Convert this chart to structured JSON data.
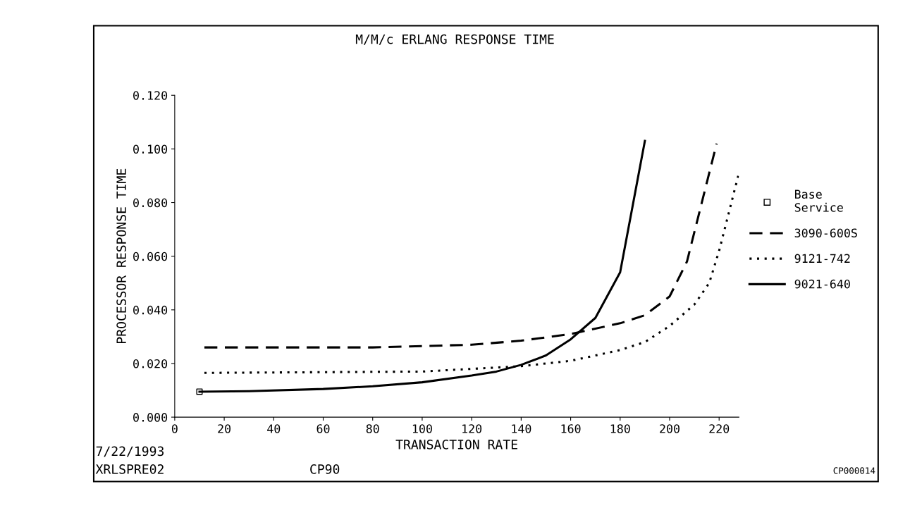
{
  "chart_data": {
    "type": "line",
    "title": "M/M/c ERLANG RESPONSE TIME",
    "xlabel": "TRANSACTION RATE",
    "ylabel": "PROCESSOR RESPONSE TIME",
    "xlim": [
      0,
      228
    ],
    "xticks": [
      0,
      20,
      40,
      60,
      80,
      100,
      120,
      140,
      160,
      180,
      200,
      220
    ],
    "ylim": [
      0,
      0.12
    ],
    "yticks": [
      {
        "value": 0,
        "label": "0.000"
      },
      {
        "value": 0.02,
        "label": "0.020"
      },
      {
        "value": 0.04,
        "label": "0.040"
      },
      {
        "value": 0.06,
        "label": "0.060"
      },
      {
        "value": 0.08,
        "label": "0.080"
      },
      {
        "value": 0.1,
        "label": "0.100"
      },
      {
        "value": 0.12,
        "label": "0.120"
      }
    ],
    "grid": false,
    "legend": "right",
    "series": [
      {
        "name": "Base\nService",
        "type": "scatter",
        "marker": "square",
        "color": "#000000",
        "x": [
          10
        ],
        "values": [
          0.0095
        ]
      },
      {
        "name": "3090-600S",
        "line_style": "dashed",
        "color": "#000000",
        "x": [
          12,
          80,
          120,
          140,
          160,
          180,
          190,
          200,
          207,
          219
        ],
        "values": [
          0.026,
          0.026,
          0.027,
          0.0285,
          0.031,
          0.035,
          0.038,
          0.045,
          0.058,
          0.102
        ]
      },
      {
        "name": "9121-742",
        "line_style": "dotted",
        "color": "#000000",
        "x": [
          12,
          100,
          140,
          160,
          180,
          190,
          200,
          210,
          216,
          220,
          228
        ],
        "values": [
          0.0165,
          0.017,
          0.019,
          0.021,
          0.025,
          0.028,
          0.034,
          0.042,
          0.05,
          0.062,
          0.091
        ]
      },
      {
        "name": "9021-640",
        "line_style": "solid",
        "color": "#000000",
        "x": [
          10,
          30,
          60,
          80,
          100,
          120,
          130,
          140,
          150,
          160,
          170,
          180,
          190
        ],
        "values": [
          0.0095,
          0.0097,
          0.0105,
          0.0115,
          0.013,
          0.0155,
          0.017,
          0.0195,
          0.023,
          0.029,
          0.037,
          0.054,
          0.103
        ]
      }
    ],
    "annotations": [
      "7/22/1993",
      "XRLSPRE02",
      "CP90",
      "CP000014"
    ]
  }
}
